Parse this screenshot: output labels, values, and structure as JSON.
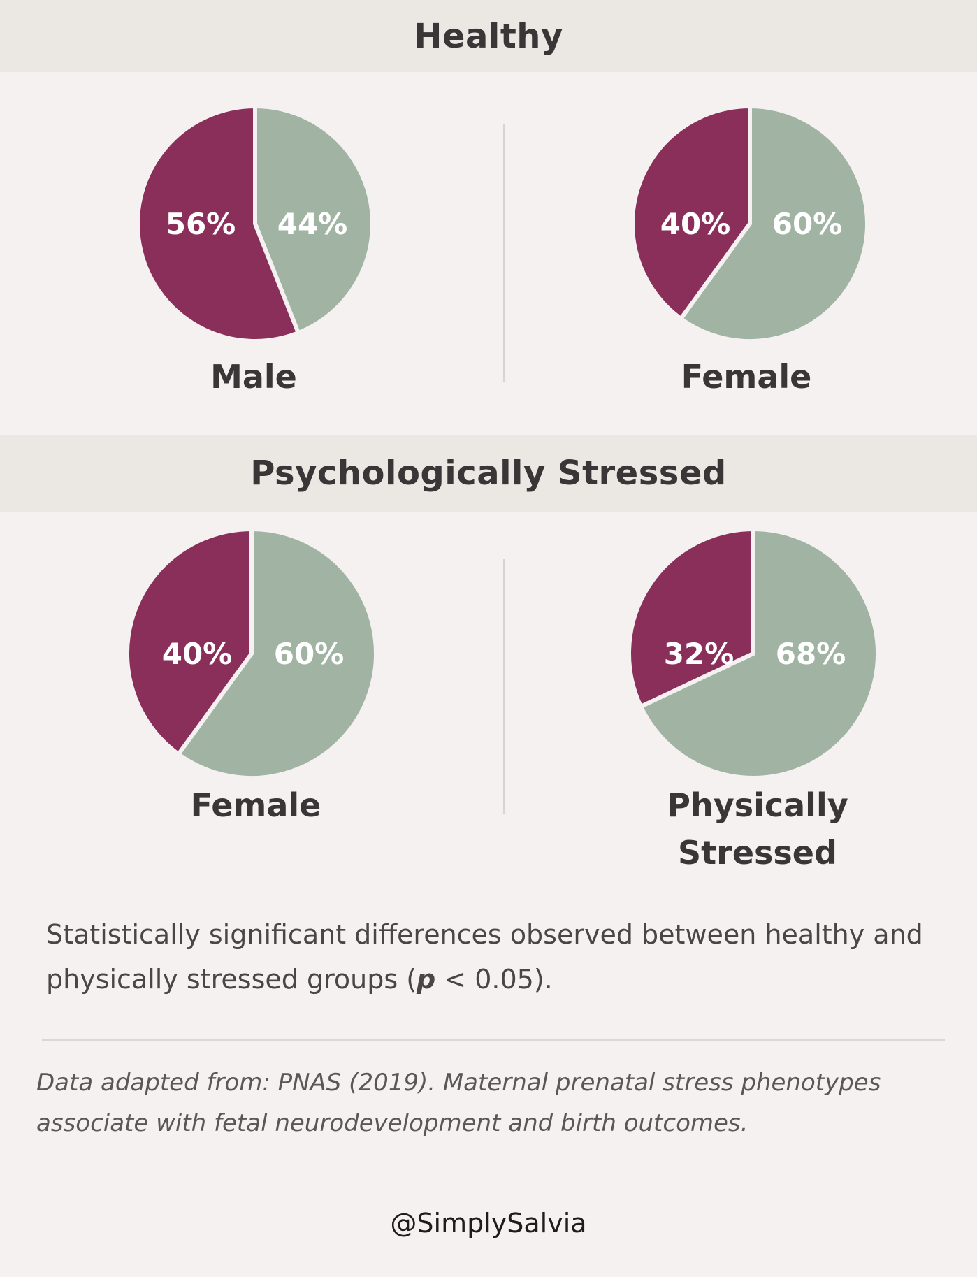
{
  "sections": {
    "healthy": "Healthy",
    "psychologically_stressed": "Psychologically Stressed"
  },
  "colors": {
    "plum": "#8a2f5a",
    "sage": "#a1b3a2",
    "band": "#ebe7e3",
    "background": "#f4f1f0"
  },
  "chart_data": [
    {
      "type": "pie",
      "section": "Healthy",
      "label": "Male",
      "slices": [
        {
          "value": 56,
          "text": "56%",
          "color": "#8a2f5a"
        },
        {
          "value": 44,
          "text": "44%",
          "color": "#a1b3a2"
        }
      ]
    },
    {
      "type": "pie",
      "section": "Healthy",
      "label": "Female",
      "slices": [
        {
          "value": 40,
          "text": "40%",
          "color": "#8a2f5a"
        },
        {
          "value": 60,
          "text": "60%",
          "color": "#a1b3a2"
        }
      ]
    },
    {
      "type": "pie",
      "section": "Psychologically Stressed",
      "label": "Female",
      "slices": [
        {
          "value": 40,
          "text": "40%",
          "color": "#8a2f5a"
        },
        {
          "value": 60,
          "text": "60%",
          "color": "#a1b3a2"
        }
      ]
    },
    {
      "type": "pie",
      "section": "Psychologically Stressed",
      "label": "Physically Stressed",
      "label_lines": [
        "Physically",
        "Stressed"
      ],
      "slices": [
        {
          "value": 32,
          "text": "32%",
          "color": "#8a2f5a"
        },
        {
          "value": 68,
          "text": "68%",
          "color": "#a1b3a2"
        }
      ]
    }
  ],
  "note": {
    "text_before": "Statistically significant differences observed between healthy and physically stressed groups (",
    "p_symbol": "p",
    "text_after": " < 0.05)."
  },
  "source": "Data adapted from: PNAS (2019). Maternal prenatal stress phenotypes associate with fetal neurodevelopment and birth outcomes.",
  "handle": "@SimplySalvia"
}
